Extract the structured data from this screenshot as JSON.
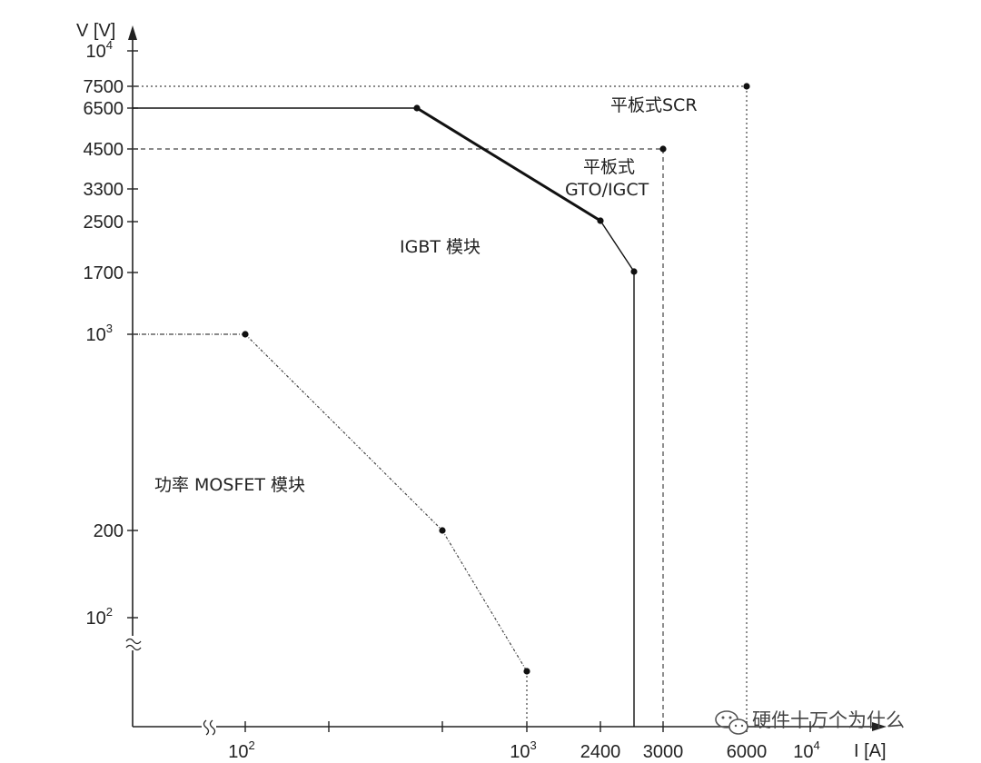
{
  "chart_data": {
    "type": "line",
    "ylabel": "V [V]",
    "xlabel": "I [A]",
    "y_ticks": [
      {
        "label": "10",
        "sup": "4"
      },
      {
        "label": "7500"
      },
      {
        "label": "6500"
      },
      {
        "label": "4500"
      },
      {
        "label": "3300"
      },
      {
        "label": "2500"
      },
      {
        "label": "1700"
      },
      {
        "label": "10",
        "sup": "3"
      },
      {
        "label": "200"
      },
      {
        "label": "10",
        "sup": "2"
      }
    ],
    "x_ticks": [
      {
        "label": "10",
        "sup": "2"
      },
      {
        "label": "10",
        "sup": "3"
      },
      {
        "label": "2400"
      },
      {
        "label": "3000"
      },
      {
        "label": "6000"
      },
      {
        "label": "10",
        "sup": "4"
      }
    ],
    "series": [
      {
        "name": "平板式SCR",
        "style": "dotted",
        "color": "#333333",
        "points": [
          [
            6000,
            7500
          ]
        ]
      },
      {
        "name": "平板式 GTO/IGCT",
        "style": "dashed",
        "color": "#333333",
        "points": [
          [
            3000,
            4500
          ]
        ]
      },
      {
        "name": "IGBT 模块",
        "style": "solid-thick",
        "color": "#111111",
        "points": [
          [
            500,
            6500
          ],
          [
            2000,
            2500
          ],
          [
            2400,
            1700
          ]
        ]
      },
      {
        "name": "功率 MOSFET 模块",
        "style": "dash-dot",
        "color": "#333333",
        "points": [
          [
            100,
            1000
          ],
          [
            400,
            200
          ],
          [
            1000,
            60
          ]
        ]
      }
    ],
    "annotations": {
      "scr": "平板式SCR",
      "gto_line1": "平板式",
      "gto_line2": "GTO/IGCT",
      "igbt": "IGBT 模块",
      "mosfet": "功率 MOSFET 模块"
    },
    "axis_break_symbol": "≈",
    "grid": false,
    "legend": "none"
  },
  "watermark": "硬件十万个为什么"
}
